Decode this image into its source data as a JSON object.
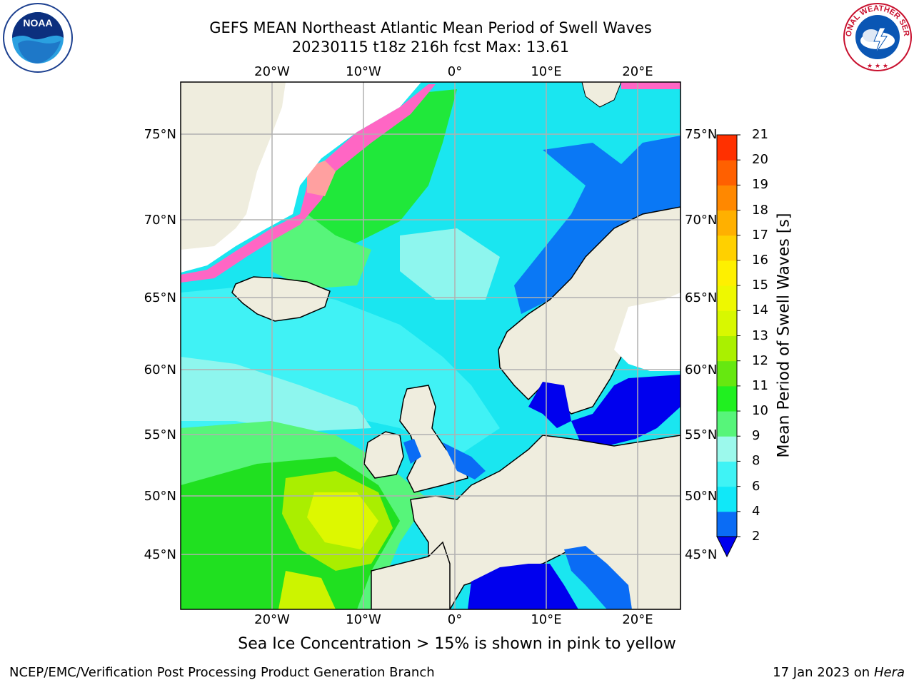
{
  "title": {
    "line1": "GEFS MEAN Northeast Atlantic Mean Period of Swell Waves",
    "line2": "20230115 t18z 216h fcst   Max: 13.61"
  },
  "logos": {
    "left": {
      "name": "noaa-logo",
      "text": "NOAA"
    },
    "right": {
      "name": "national-weather-service-logo",
      "text": "NATIONAL WEATHER SERVICE"
    }
  },
  "map": {
    "lon_labels": [
      "20°W",
      "10°W",
      "0°",
      "10°E",
      "20°E"
    ],
    "lat_labels": [
      "75°N",
      "70°N",
      "65°N",
      "60°N",
      "55°N",
      "50°N",
      "45°N"
    ],
    "colors": {
      "land": "#efedde",
      "ice_free_ocean_default": "#1ae6f0",
      "ice": "#ff66c4",
      "grid": "#b0b0b0"
    }
  },
  "colorbar": {
    "title": "Mean Period of Swell Waves [s]",
    "levels": [
      "2",
      "4",
      "6",
      "8",
      "9",
      "10",
      "11",
      "12",
      "13",
      "14",
      "15",
      "16",
      "17",
      "18",
      "19",
      "20",
      "21"
    ],
    "colors": [
      "#0a6cf5",
      "#10e8f8",
      "#3ff3f5",
      "#9cf9ec",
      "#57f57a",
      "#20f020",
      "#66e810",
      "#aaf000",
      "#d8f800",
      "#eef800",
      "#fef000",
      "#ffd000",
      "#ffb000",
      "#ff8800",
      "#ff6000",
      "#ff3000"
    ],
    "under_color": "#0000ee"
  },
  "caption": "Sea Ice Concentration > 15% is shown in pink to yellow",
  "footer": {
    "left": "NCEP/EMC/Verification Post Processing Product Generation Branch",
    "right_date": "17 Jan 2023 on ",
    "right_host": "Hera"
  }
}
